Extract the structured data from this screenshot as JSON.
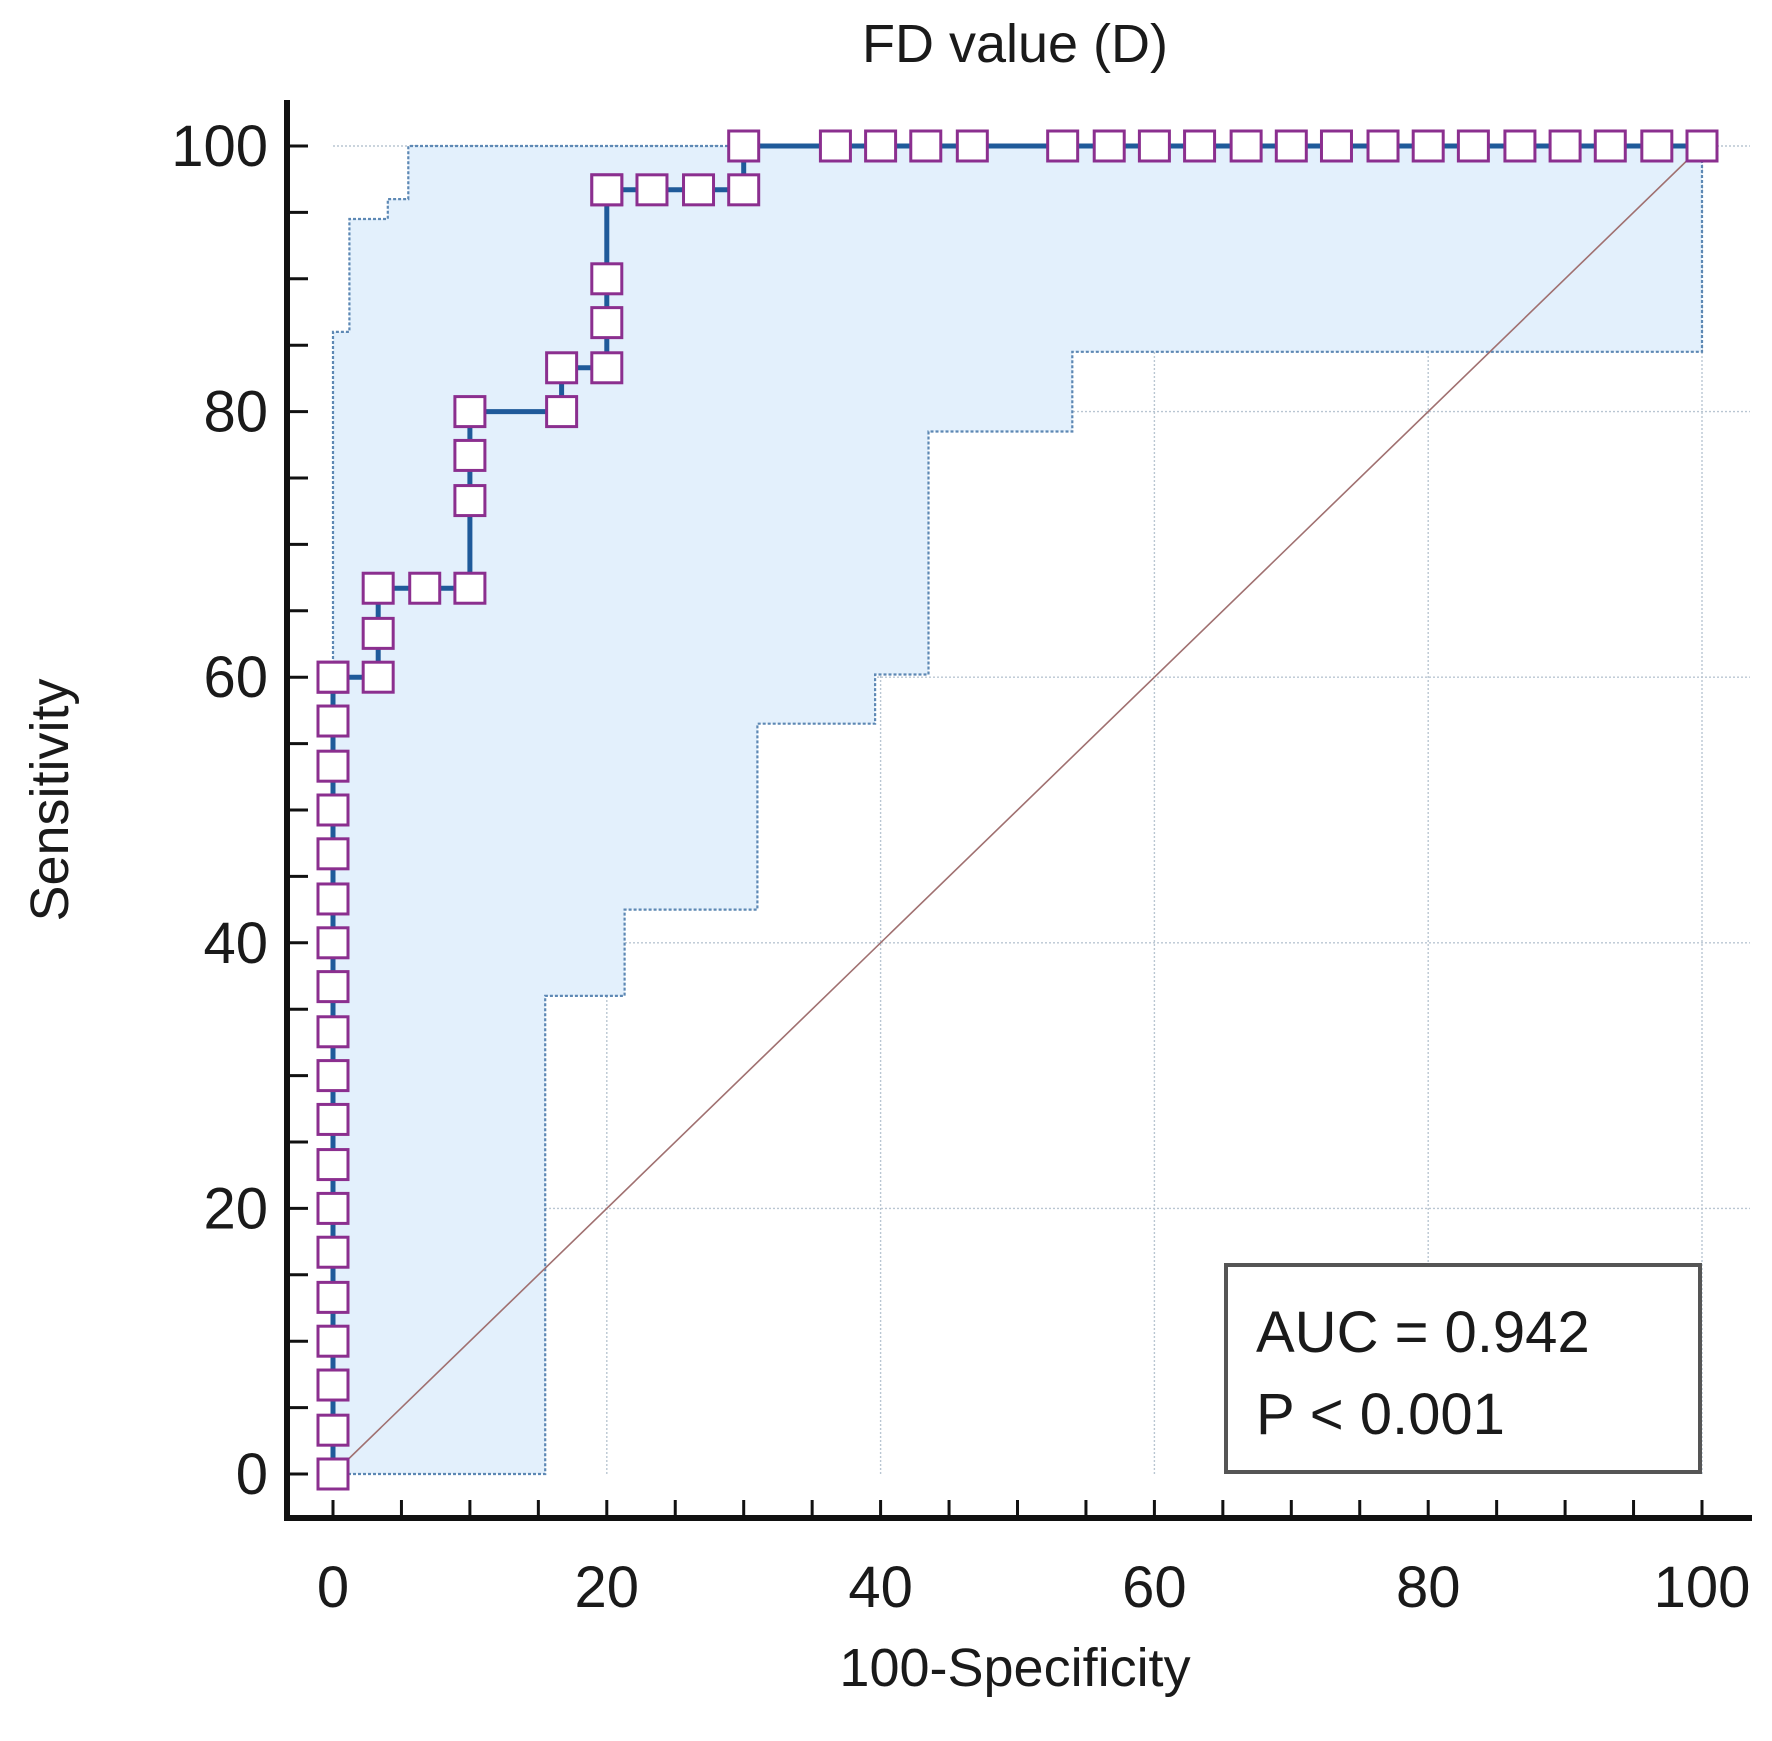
{
  "chart_data": {
    "type": "line",
    "title": "FD value (D)",
    "xlabel": "100-Specificity",
    "ylabel": "Sensitivity",
    "xlim": [
      0,
      100
    ],
    "ylim": [
      0,
      100
    ],
    "x_ticks": [
      "0",
      "20",
      "40",
      "60",
      "80",
      "100"
    ],
    "y_ticks": [
      "0",
      "20",
      "40",
      "60",
      "80",
      "100"
    ],
    "grid": true,
    "annotation": {
      "auc": "AUC = 0.942",
      "p": "P < 0.001",
      "placement": "bottom-right"
    },
    "series": [
      {
        "name": "ROC curve",
        "style": "step line with square markers",
        "x": [
          0,
          0,
          0,
          0,
          0,
          0,
          0,
          0,
          0,
          0,
          0,
          0,
          0,
          0,
          0,
          0,
          0,
          0,
          0,
          0,
          3.3,
          3.3,
          3.3,
          6.7,
          10,
          10,
          10,
          10,
          16.7,
          16.7,
          20,
          20,
          20,
          20,
          20,
          23.3,
          26.7,
          30,
          30,
          36.7,
          40,
          43.3,
          46.7,
          53.3,
          56.7,
          60,
          63.3,
          66.7,
          70,
          73.3,
          76.7,
          80,
          83.3,
          86.7,
          90,
          93.3,
          96.7,
          100
        ],
        "y": [
          0,
          3.3,
          6.7,
          10,
          13.3,
          16.7,
          20,
          23.3,
          26.7,
          30,
          33.3,
          36.7,
          40,
          43.3,
          46.7,
          50,
          53.3,
          56.7,
          60,
          60,
          60,
          63.3,
          66.7,
          66.7,
          66.7,
          73.3,
          76.7,
          80,
          80,
          83.3,
          83.3,
          86.7,
          90,
          96.7,
          96.7,
          96.7,
          96.7,
          96.7,
          100,
          100,
          100,
          100,
          100,
          100,
          100,
          100,
          100,
          100,
          100,
          100,
          100,
          100,
          100,
          100,
          100,
          100,
          100,
          100
        ]
      },
      {
        "name": "Upper 95% confidence bound",
        "style": "dotted step line",
        "x": [
          0,
          0,
          1.2,
          1.2,
          4,
          4,
          5.5,
          5.5,
          100
        ],
        "y": [
          0,
          86,
          86,
          94.5,
          94.5,
          96,
          96,
          100,
          100
        ]
      },
      {
        "name": "Lower 95% confidence bound",
        "style": "dotted step line",
        "x": [
          0,
          15.5,
          15.5,
          21.3,
          21.3,
          31,
          31,
          39.6,
          39.6,
          43.5,
          43.5,
          54,
          54,
          100,
          100
        ],
        "y": [
          0,
          0,
          36,
          36,
          42.5,
          42.5,
          56.5,
          56.5,
          60.2,
          60.2,
          78.5,
          78.5,
          84.5,
          84.5,
          100
        ]
      },
      {
        "name": "Reference line",
        "style": "diagonal",
        "x": [
          0,
          100
        ],
        "y": [
          0,
          100
        ]
      }
    ]
  }
}
